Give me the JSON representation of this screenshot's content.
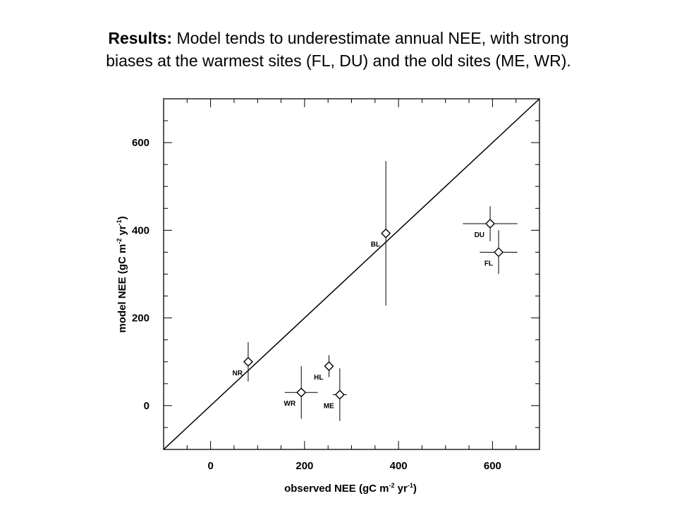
{
  "title": {
    "bold": "Results:",
    "line1": " Model tends to underestimate annual NEE, with strong",
    "line2": "biases at the warmest sites (FL, DU) and the old sites (ME, WR)."
  },
  "chart_data": {
    "type": "scatter",
    "xlabel": "observed NEE (gC m",
    "ylabel": "model NEE (gC m",
    "unit_sup1": "-2",
    "unit_mid": " yr",
    "unit_sup2": "-1",
    "unit_close": ")",
    "xlim": [
      -100,
      700
    ],
    "ylim": [
      -100,
      700
    ],
    "xticks": [
      0,
      200,
      400,
      600
    ],
    "yticks": [
      0,
      200,
      400,
      600
    ],
    "one_to_one_line": true,
    "marker": "diamond",
    "points": [
      {
        "label": "NR",
        "x": 80,
        "y": 100,
        "xerr": 0,
        "yerr": 45
      },
      {
        "label": "WR",
        "x": 193,
        "y": 30,
        "xerr": 35,
        "yerr": 60
      },
      {
        "label": "HL",
        "x": 252,
        "y": 90,
        "xerr": 0,
        "yerr": 25
      },
      {
        "label": "ME",
        "x": 275,
        "y": 25,
        "xerr": 15,
        "yerr": 60
      },
      {
        "label": "BL",
        "x": 373,
        "y": 393,
        "xerr": 0,
        "yerr": 165
      },
      {
        "label": "DU",
        "x": 595,
        "y": 415,
        "xerr": 58,
        "yerr": 40
      },
      {
        "label": "FL",
        "x": 613,
        "y": 350,
        "xerr": 40,
        "yerr": 50
      }
    ]
  }
}
